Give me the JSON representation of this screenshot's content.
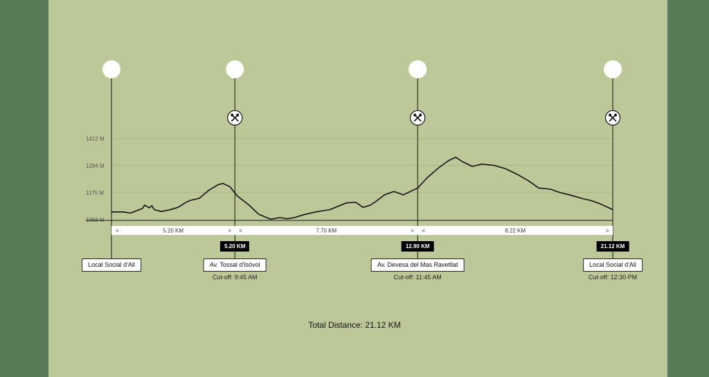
{
  "chart_data": {
    "type": "area",
    "title": "",
    "xlabel": "",
    "ylabel": "",
    "x_range_km": [
      0,
      21.12
    ],
    "ylim": [
      1056,
      1412
    ],
    "y_ticks": [
      "1412 M",
      "1294 M",
      "1175 M",
      "1056 M"
    ],
    "y_tick_values": [
      1412,
      1294,
      1175,
      1056
    ],
    "elevation_profile": {
      "x": [
        0,
        0.5,
        0.8,
        1.3,
        1.4,
        1.6,
        1.7,
        1.8,
        2.1,
        2.4,
        2.8,
        3.1,
        3.3,
        3.7,
        4.1,
        4.5,
        4.7,
        5.0,
        5.3,
        5.8,
        6.2,
        6.7,
        7.1,
        7.4,
        7.7,
        8.1,
        8.6,
        9.2,
        9.9,
        10.3,
        10.6,
        10.9,
        11.1,
        11.5,
        11.9,
        12.3,
        12.6,
        12.9,
        13.3,
        13.8,
        14.2,
        14.5,
        14.8,
        15.2,
        15.6,
        16.1,
        16.6,
        17.1,
        17.6,
        18.0,
        18.5,
        18.9,
        19.3,
        19.8,
        20.2,
        20.6,
        21.12
      ],
      "y": [
        1090,
        1090,
        1085,
        1105,
        1120,
        1108,
        1118,
        1100,
        1092,
        1098,
        1110,
        1130,
        1140,
        1150,
        1185,
        1210,
        1215,
        1200,
        1160,
        1120,
        1080,
        1058,
        1065,
        1060,
        1065,
        1078,
        1090,
        1100,
        1130,
        1132,
        1110,
        1120,
        1133,
        1165,
        1180,
        1165,
        1180,
        1195,
        1240,
        1285,
        1315,
        1330,
        1310,
        1290,
        1300,
        1295,
        1280,
        1255,
        1225,
        1195,
        1190,
        1175,
        1165,
        1150,
        1140,
        1125,
        1100
      ]
    },
    "segments": [
      {
        "label": "5.20 KM",
        "from_km": 0,
        "to_km": 5.2
      },
      {
        "label": "7.70 KM",
        "from_km": 5.2,
        "to_km": 12.9
      },
      {
        "label": "8.22 KM",
        "from_km": 12.9,
        "to_km": 21.12
      }
    ],
    "stations": [
      {
        "km": 0,
        "name": "Local Social d'All",
        "badge": "",
        "cutoff": "",
        "aid": false
      },
      {
        "km": 5.2,
        "name": "Av. Tossal d'Isòvol",
        "badge": "5.20 KM",
        "cutoff": "Cut-off: 9:45 AM",
        "aid": true
      },
      {
        "km": 12.9,
        "name": "Av. Devesa del Mas Ravetllat",
        "badge": "12.90 KM",
        "cutoff": "Cut-off: 11:45 AM",
        "aid": true
      },
      {
        "km": 21.12,
        "name": "Local Social d'All",
        "badge": "21.12 KM",
        "cutoff": "Cut-off: 12:30 PM",
        "aid": true
      }
    ],
    "arrow_left": "<",
    "arrow_right": ">"
  },
  "total": {
    "label": "Total Distance:",
    "value": "21.12 KM"
  },
  "colors": {
    "page_bg": "#5a7b57",
    "panel_bg": "#bdc898",
    "line": "#111111",
    "bar": "#ffffff",
    "badge": "#000000"
  },
  "icons": {
    "station_marker": "circle-icon",
    "aid_station": "fork-knife-icon"
  }
}
